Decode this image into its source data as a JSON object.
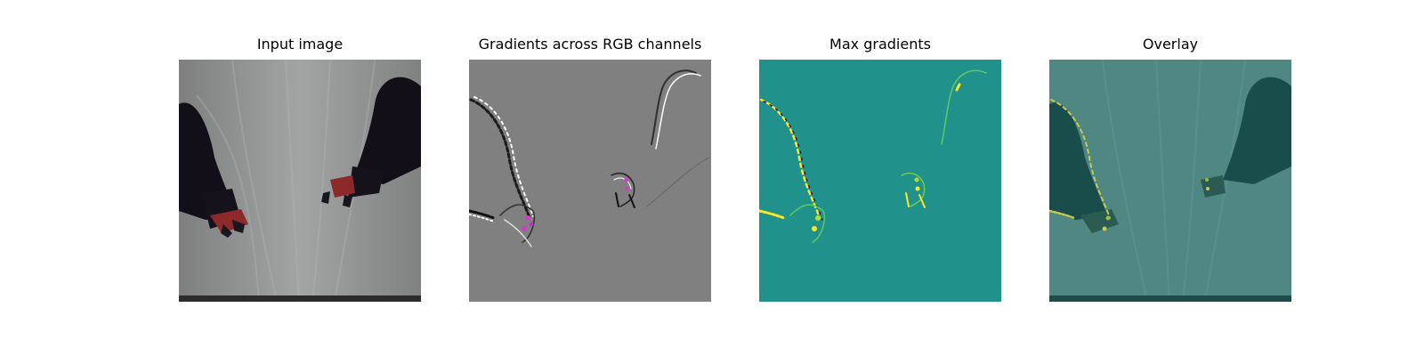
{
  "figure": {
    "panels": [
      {
        "title": "Input image"
      },
      {
        "title": "Gradients across RGB channels"
      },
      {
        "title": "Max gradients"
      },
      {
        "title": "Overlay"
      }
    ]
  },
  "colors": {
    "input_background": "#8f9191",
    "gradient_background": "#808080",
    "max_gradient_background": "#21918c",
    "overlay_background": "#4f8783",
    "robot_arm": "#120f18",
    "gripper_red": "#8c2a2a"
  }
}
